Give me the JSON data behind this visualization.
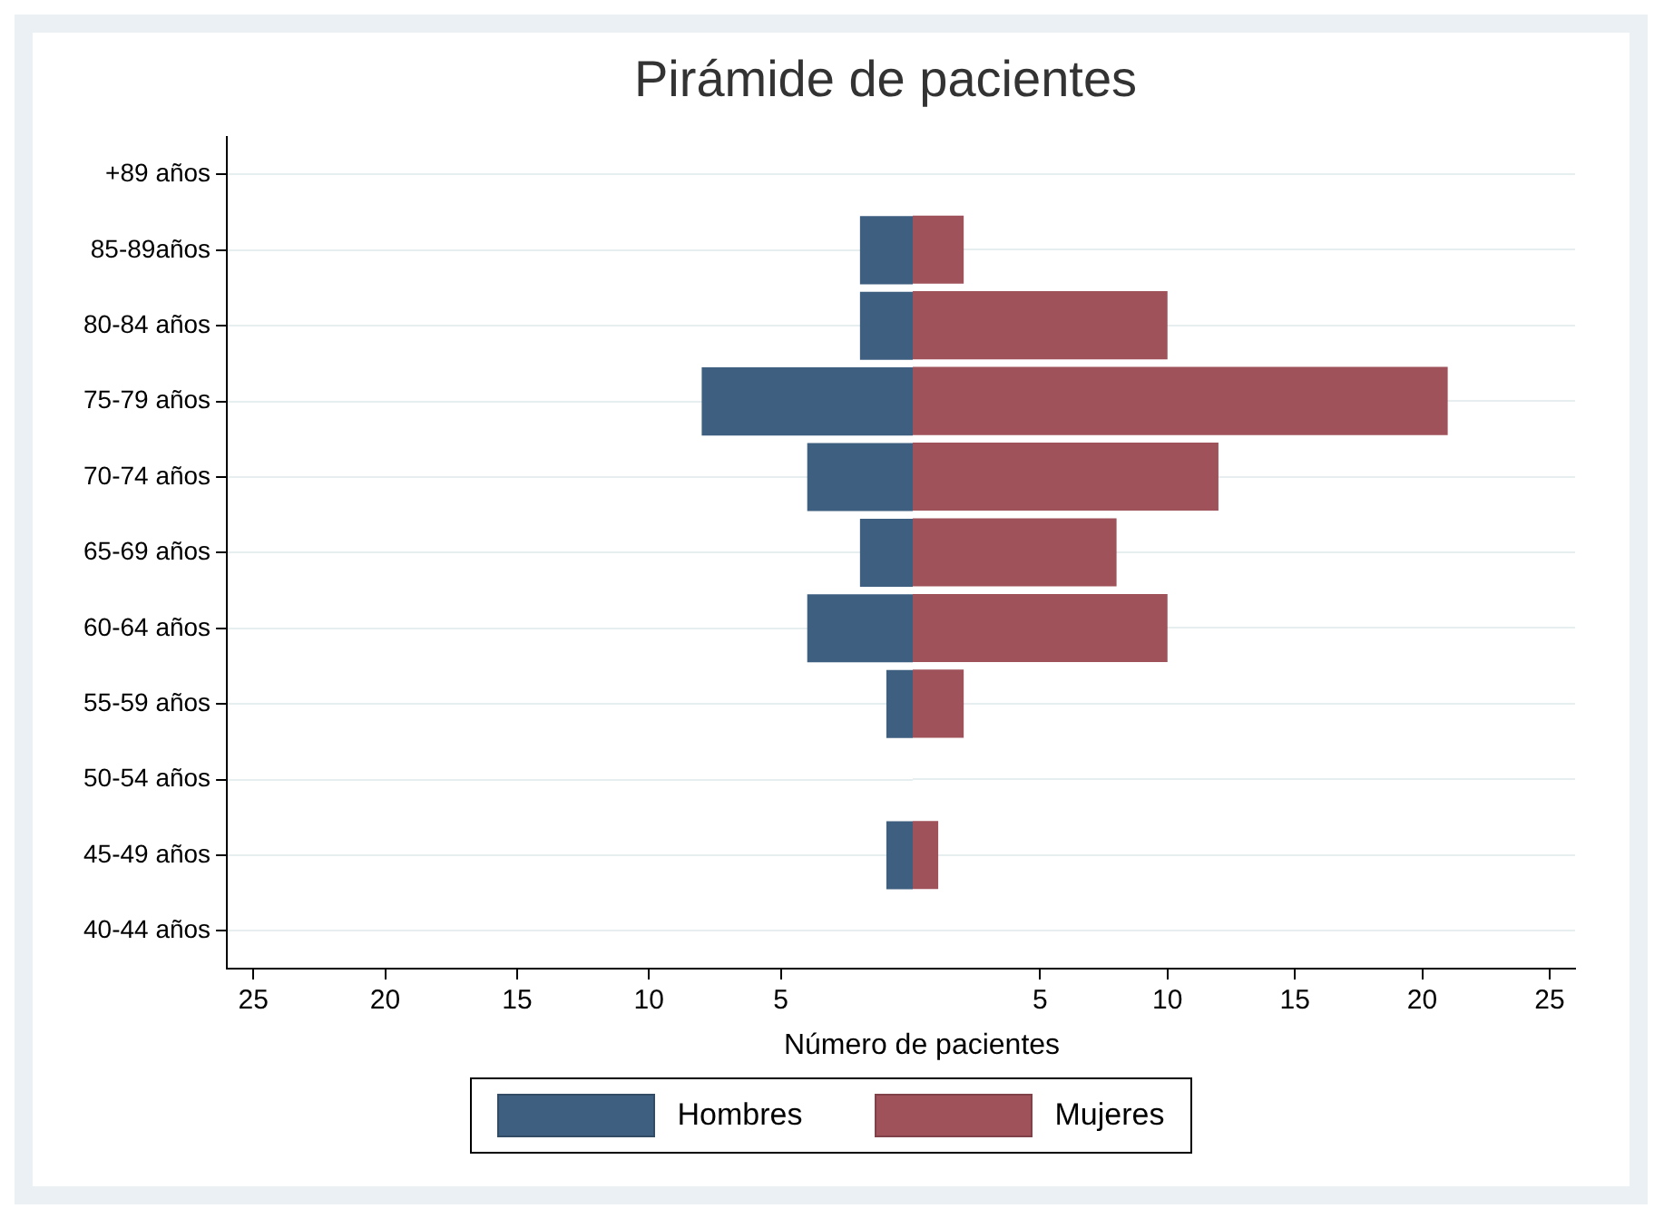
{
  "chart_data": [
    {
      "type": "bar",
      "orientation": "horizontal",
      "title": "Pirámide de pacientes",
      "xlabel": "Número de pacientes",
      "categories": [
        "+89 años",
        "85-89años",
        "80-84 años",
        "75-79 años",
        "70-74 años",
        "65-69 años",
        "60-64 años",
        "55-59 años",
        "50-54 años",
        "45-49 años",
        "40-44 años"
      ],
      "series": [
        {
          "name": "Hombres",
          "color": "#3f5f80",
          "values": [
            0,
            2,
            2,
            8,
            4,
            2,
            4,
            1,
            0,
            1,
            0
          ]
        }
      ],
      "xlim": [
        26,
        0
      ],
      "xticks": [
        25,
        20,
        15,
        10,
        5
      ],
      "grid": "y",
      "legend": "bottom"
    },
    {
      "type": "bar",
      "orientation": "horizontal",
      "tick_labels": "x",
      "categories": [
        null,
        null,
        null,
        null,
        null,
        null,
        null,
        null,
        null,
        null,
        null
      ],
      "series": [
        {
          "name": "Mujeres",
          "color": "#a0525a",
          "values": [
            0,
            2,
            10,
            21,
            12,
            8,
            10,
            2,
            0,
            1,
            0
          ]
        }
      ],
      "xlim": [
        0,
        26
      ],
      "xticks": [
        5,
        10,
        15,
        20,
        25
      ],
      "grid": "y",
      "legend": "bottom"
    }
  ]
}
